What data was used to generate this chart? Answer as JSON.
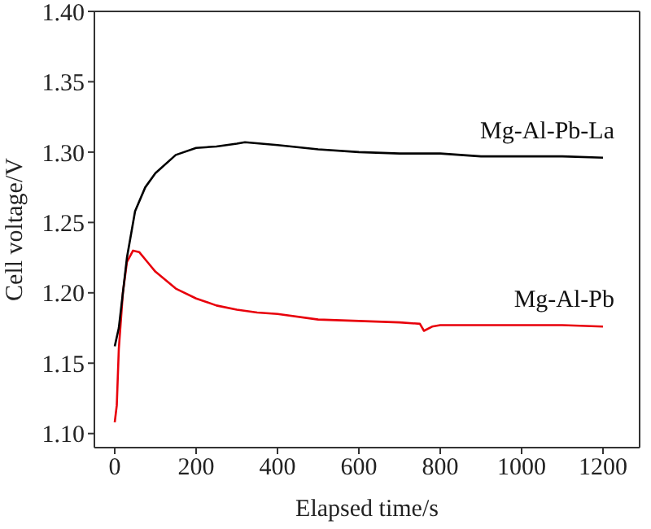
{
  "chart_data": {
    "type": "line",
    "xlabel": "Elapsed time/s",
    "ylabel": "Cell voltage/V",
    "xlim": [
      -50,
      1290
    ],
    "xticks": [
      0,
      200,
      400,
      600,
      800,
      1000,
      1200
    ],
    "ylim": [
      1.09,
      1.4
    ],
    "yticks": [
      {
        "value": 1.1,
        "label": "1.10"
      },
      {
        "value": 1.15,
        "label": "1.15"
      },
      {
        "value": 1.2,
        "label": "1.20"
      },
      {
        "value": 1.25,
        "label": "1.25"
      },
      {
        "value": 1.3,
        "label": "1.30"
      },
      {
        "value": 1.35,
        "label": "1.35"
      },
      {
        "value": 1.4,
        "label": "1.40"
      }
    ],
    "legend": false,
    "marker": "none",
    "line_style": "solid",
    "series": [
      {
        "name": "Mg-Al-Pb-La",
        "color": "#000000",
        "x": [
          0,
          10,
          20,
          30,
          50,
          75,
          100,
          150,
          200,
          250,
          300,
          320,
          400,
          500,
          600,
          700,
          800,
          850,
          900,
          1000,
          1100,
          1200
        ],
        "values": [
          1.162,
          1.175,
          1.2,
          1.225,
          1.258,
          1.275,
          1.285,
          1.298,
          1.303,
          1.304,
          1.306,
          1.307,
          1.305,
          1.302,
          1.3,
          1.299,
          1.299,
          1.298,
          1.297,
          1.297,
          1.297,
          1.296
        ]
      },
      {
        "name": "Mg-Al-Pb",
        "color": "#e8000b",
        "x": [
          0,
          5,
          10,
          20,
          30,
          45,
          60,
          80,
          100,
          150,
          200,
          250,
          300,
          350,
          400,
          500,
          600,
          700,
          750,
          760,
          780,
          800,
          900,
          1000,
          1100,
          1200
        ],
        "values": [
          1.108,
          1.12,
          1.16,
          1.2,
          1.222,
          1.23,
          1.229,
          1.222,
          1.215,
          1.203,
          1.196,
          1.191,
          1.188,
          1.186,
          1.185,
          1.181,
          1.18,
          1.179,
          1.178,
          1.173,
          1.176,
          1.177,
          1.177,
          1.177,
          1.177,
          1.176
        ]
      }
    ]
  }
}
